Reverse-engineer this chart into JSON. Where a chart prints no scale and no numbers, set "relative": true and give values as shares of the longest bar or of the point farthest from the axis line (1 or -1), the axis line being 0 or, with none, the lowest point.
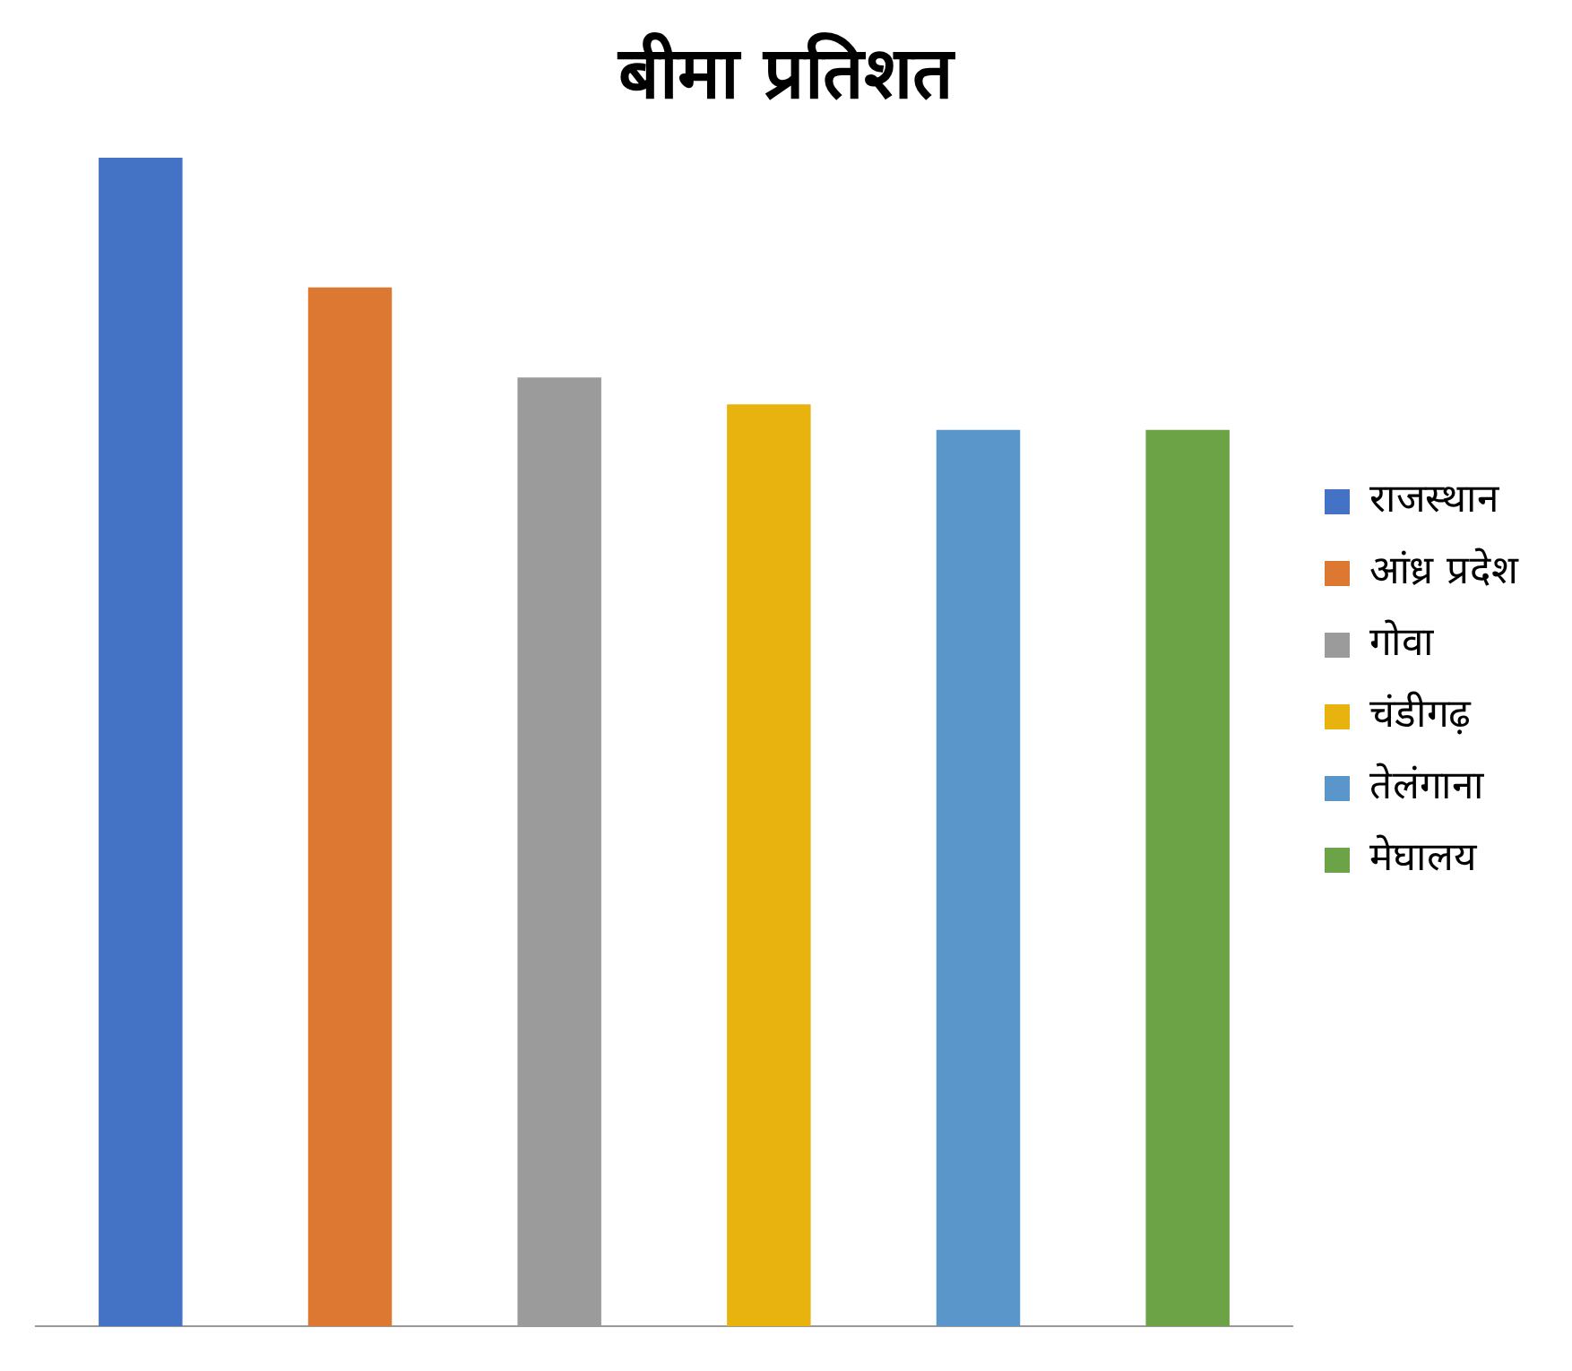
{
  "chart_data": {
    "type": "bar",
    "title": "बीमा प्रतिशत",
    "relative": true,
    "stacked": true,
    "categories": [
      null,
      null,
      null,
      null,
      null,
      null
    ],
    "legend": "right",
    "grid": false,
    "series": [
      {
        "name": "राजस्थान",
        "color": "#4472c4",
        "values": [
          1,
          null,
          null,
          null,
          null,
          null
        ]
      },
      {
        "name": "आंध्र प्रदेश",
        "color": "#dc7832",
        "values": [
          null,
          0.889,
          null,
          null,
          null,
          null
        ]
      },
      {
        "name": "गोवा",
        "color": "#9b9b9b",
        "values": [
          null,
          null,
          0.812,
          null,
          null,
          null
        ]
      },
      {
        "name": "चंडीगढ़",
        "color": "#e9b30f",
        "values": [
          null,
          null,
          null,
          0.789,
          null,
          null
        ]
      },
      {
        "name": "तेलंगाना",
        "color": "#5b96cb",
        "values": [
          null,
          null,
          null,
          null,
          0.767,
          null
        ]
      },
      {
        "name": "मेघालय",
        "color": "#6ba346",
        "values": [
          null,
          null,
          null,
          null,
          null,
          0.767
        ]
      }
    ]
  }
}
